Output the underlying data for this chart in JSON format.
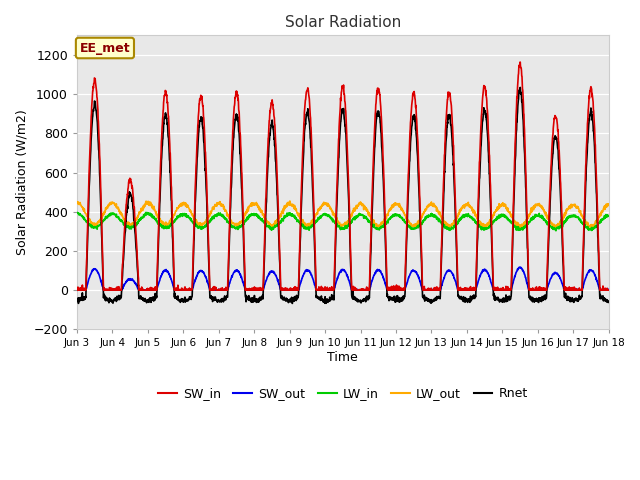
{
  "title": "Solar Radiation",
  "ylabel": "Solar Radiation (W/m2)",
  "xlabel": "Time",
  "ylim": [
    -200,
    1300
  ],
  "yticks": [
    -200,
    0,
    200,
    400,
    600,
    800,
    1000,
    1200
  ],
  "annotation": "EE_met",
  "legend_labels": [
    "SW_in",
    "SW_out",
    "LW_in",
    "LW_out",
    "Rnet"
  ],
  "legend_colors": [
    "#dd0000",
    "#0000ee",
    "#00cc00",
    "#ffaa00",
    "#000000"
  ],
  "fig_bg_color": "#ffffff",
  "plot_bg_color": "#e8e8e8",
  "grid_color": "#ffffff",
  "n_days": 15,
  "points_per_day": 144,
  "start_day": 3,
  "SW_in_peaks": [
    1075,
    560,
    1010,
    990,
    1010,
    960,
    1030,
    1040,
    1035,
    1005,
    1010,
    1040,
    1150,
    890,
    1030
  ],
  "tick_labels": [
    "Jun 3",
    "Jun 4",
    "Jun 5",
    "Jun 6",
    "Jun 7",
    "Jun 8",
    "Jun 9",
    "Jun 10",
    "Jun 11",
    "Jun 12",
    "Jun 13",
    "Jun 14",
    "Jun 15",
    "Jun 16",
    "Jun 17",
    "Jun 18"
  ]
}
